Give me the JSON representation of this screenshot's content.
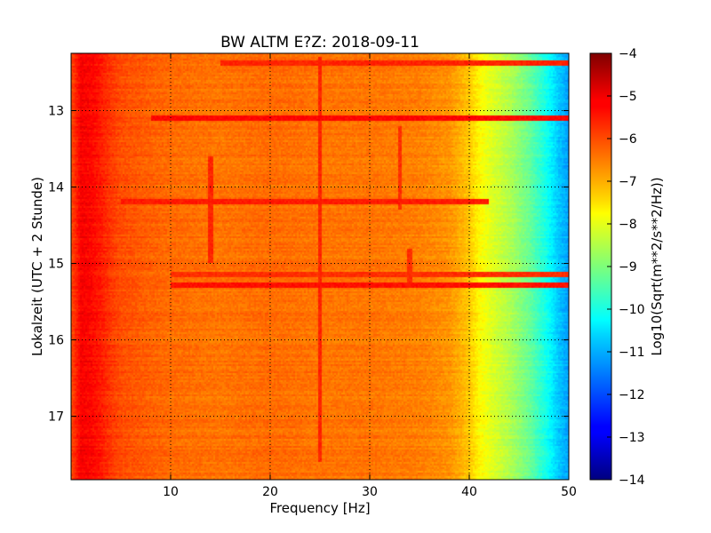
{
  "chart_data": {
    "type": "heatmap",
    "title": "BW ALTM E?Z: 2018-09-11",
    "xlabel": "Frequency [Hz]",
    "ylabel": "Lokalzeit (UTC + 2 Stunde)",
    "xlim": [
      0,
      50
    ],
    "ylim": [
      12.25,
      17.83
    ],
    "y_inverted": true,
    "x_ticks": [
      10,
      20,
      30,
      40,
      50
    ],
    "y_ticks": [
      13,
      14,
      15,
      16,
      17
    ],
    "grid": true,
    "colormap": "jet",
    "colorbar": {
      "label": "Log10(Sqrt(m**2/s**2/Hz))",
      "range": [
        -14,
        -4
      ],
      "ticks": [
        -4,
        -5,
        -6,
        -7,
        -8,
        -9,
        -10,
        -11,
        -12,
        -13,
        -14
      ]
    },
    "spectrum_profile": {
      "frequency_hz": [
        0,
        1,
        2,
        3,
        4,
        5,
        8,
        10,
        15,
        20,
        25,
        30,
        35,
        38,
        40,
        41,
        42,
        44,
        46,
        48,
        49,
        50
      ],
      "level": [
        -6.0,
        -5.2,
        -5.3,
        -5.5,
        -5.8,
        -6.0,
        -6.2,
        -6.3,
        -6.4,
        -6.3,
        -6.4,
        -6.4,
        -6.5,
        -6.7,
        -7.2,
        -7.7,
        -8.0,
        -8.5,
        -9.2,
        -10.2,
        -10.8,
        -11.2
      ]
    },
    "horizontal_features": [
      {
        "time": 12.38,
        "f_start": 15,
        "f_end": 50,
        "level": -5.6
      },
      {
        "time": 13.1,
        "f_start": 8,
        "f_end": 50,
        "level": -5.3
      },
      {
        "time": 14.2,
        "f_start": 5,
        "f_end": 42,
        "level": -5.5
      },
      {
        "time": 15.15,
        "f_start": 10,
        "f_end": 50,
        "level": -5.7
      },
      {
        "time": 15.28,
        "f_start": 10,
        "f_end": 50,
        "level": -5.4
      }
    ],
    "vertical_features": [
      {
        "frequency": 14.0,
        "t_start": 13.6,
        "t_end": 15.0,
        "level": -5.6
      },
      {
        "frequency": 25.0,
        "t_start": 12.3,
        "t_end": 17.6,
        "level": -5.6
      },
      {
        "frequency": 33.0,
        "t_start": 13.2,
        "t_end": 14.3,
        "level": -5.7
      },
      {
        "frequency": 34.0,
        "t_start": 14.8,
        "t_end": 15.3,
        "level": -5.7
      }
    ]
  }
}
